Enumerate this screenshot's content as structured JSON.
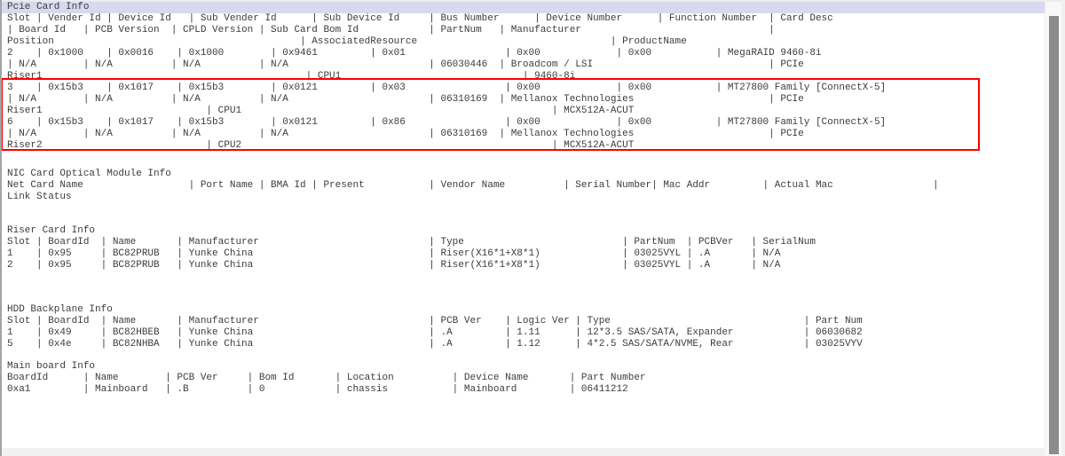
{
  "colors": {
    "selection_highlight": "#d8d8ef",
    "annotation_box": "#ff0000",
    "text": "#3c3c3c",
    "scrollbar_thumb": "#8c8c8c"
  },
  "pcie": {
    "title": "Pcie Card Info",
    "header": {
      "line1": [
        "Slot",
        "Vender Id",
        "Device Id",
        "Sub Vender Id",
        "Sub Device Id",
        "Bus Number",
        "Device Number",
        "Function Number",
        "Card Desc"
      ],
      "line2": [
        "Board Id",
        "PCB Version",
        "CPLD Version",
        "Sub Card Bom Id",
        "PartNum",
        "Manufacturer",
        ""
      ],
      "line3": [
        "Position",
        "AssociatedResource",
        "ProductName"
      ]
    },
    "rows": [
      {
        "line1": [
          "2",
          "0x1000",
          "0x0016",
          "0x1000",
          "0x9461",
          "0x01",
          "0x00",
          "0x00",
          "MegaRAID 9460-8i"
        ],
        "line2": [
          "N/A",
          "N/A",
          "N/A",
          "N/A",
          "06030446",
          "Broadcom / LSI",
          "PCIe"
        ],
        "line3": [
          "Riser1",
          "CPU1",
          "9460-8i"
        ]
      },
      {
        "line1": [
          "3",
          "0x15b3",
          "0x1017",
          "0x15b3",
          "0x0121",
          "0x03",
          "0x00",
          "0x00",
          "MT27800 Family [ConnectX-5]"
        ],
        "line2": [
          "N/A",
          "N/A",
          "N/A",
          "N/A",
          "06310169",
          "Mellanox Technologies",
          "PCIe"
        ],
        "line3": [
          "Riser1",
          "CPU1",
          "MCX512A-ACUT"
        ]
      },
      {
        "line1": [
          "6",
          "0x15b3",
          "0x1017",
          "0x15b3",
          "0x0121",
          "0x86",
          "0x00",
          "0x00",
          "MT27800 Family [ConnectX-5]"
        ],
        "line2": [
          "N/A",
          "N/A",
          "N/A",
          "N/A",
          "06310169",
          "Mellanox Technologies",
          "PCIe"
        ],
        "line3": [
          "Riser2",
          "CPU2",
          "MCX512A-ACUT"
        ]
      }
    ]
  },
  "nic": {
    "title": "NIC Card Optical Module Info",
    "columns": [
      "Net Card Name",
      "Port Name",
      "BMA Id",
      "Present",
      "Vendor Name",
      "Serial Number",
      "Mac Addr",
      "Actual Mac",
      ""
    ],
    "columns_line2": "Link Status",
    "rows": []
  },
  "riser": {
    "title": "Riser Card Info",
    "columns": [
      "Slot",
      "BoardId",
      "Name",
      "Manufacturer",
      "Type",
      "PartNum",
      "PCBVer",
      "SerialNum"
    ],
    "rows": [
      [
        "1",
        "0x95",
        "BC82PRUB",
        "Yunke China",
        "Riser(X16*1+X8*1)",
        "03025VYL",
        ".A",
        "N/A"
      ],
      [
        "2",
        "0x95",
        "BC82PRUB",
        "Yunke China",
        "Riser(X16*1+X8*1)",
        "03025VYL",
        ".A",
        "N/A"
      ]
    ]
  },
  "hdd": {
    "title": "HDD Backplane Info",
    "columns": [
      "Slot",
      "BoardId",
      "Name",
      "Manufacturer",
      "PCB Ver",
      "Logic Ver",
      "Type",
      "Part Num"
    ],
    "rows": [
      [
        "1",
        "0x49",
        "BC82HBEB",
        "Yunke China",
        ".A",
        "1.11",
        "12*3.5 SAS/SATA, Expander",
        "06030682"
      ],
      [
        "5",
        "0x4e",
        "BC82NHBA",
        "Yunke China",
        ".A",
        "1.12",
        "4*2.5 SAS/SATA/NVME, Rear",
        "03025VYV"
      ]
    ]
  },
  "main": {
    "title": "Main board Info",
    "columns": [
      "BoardId",
      "Name",
      "PCB Ver",
      "Bom Id",
      "Location",
      "Device Name",
      "Part Number"
    ],
    "rows": [
      [
        "0xa1",
        "Mainboard",
        ".B",
        "0",
        "chassis",
        "Mainboard",
        "06411212"
      ]
    ]
  }
}
